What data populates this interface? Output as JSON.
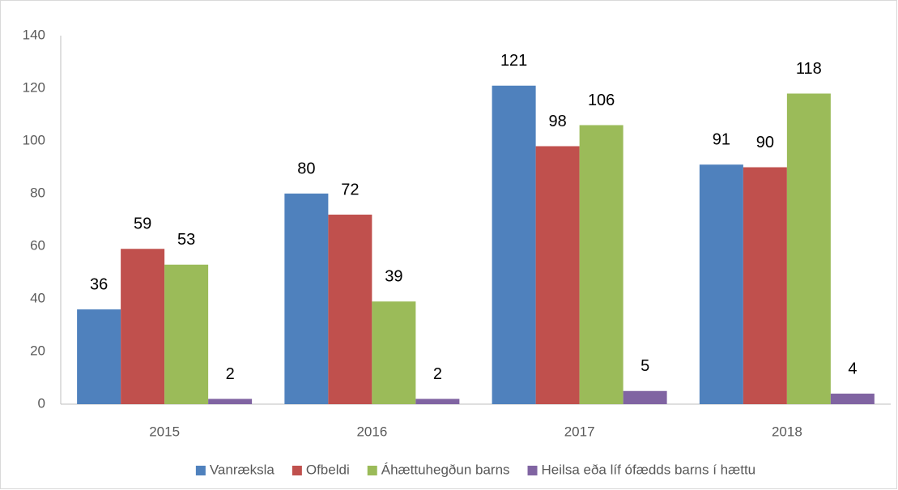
{
  "chart_data": {
    "type": "bar",
    "categories": [
      "2015",
      "2016",
      "2017",
      "2018"
    ],
    "series": [
      {
        "name": "Vanræksla",
        "color": "#4f81bd",
        "values": [
          36,
          80,
          121,
          91
        ]
      },
      {
        "name": "Ofbeldi",
        "color": "#c0504d",
        "values": [
          59,
          72,
          98,
          90
        ]
      },
      {
        "name": "Áhættuhegðun barns",
        "color": "#9bbb59",
        "values": [
          53,
          39,
          106,
          118
        ]
      },
      {
        "name": "Heilsa eða líf ófædds barns í hættu",
        "color": "#8064a2",
        "values": [
          2,
          2,
          5,
          4
        ]
      }
    ],
    "ylim": [
      0,
      140
    ],
    "yticks": [
      0,
      20,
      40,
      60,
      80,
      100,
      120,
      140
    ],
    "grid": false,
    "legend": "bottom"
  }
}
